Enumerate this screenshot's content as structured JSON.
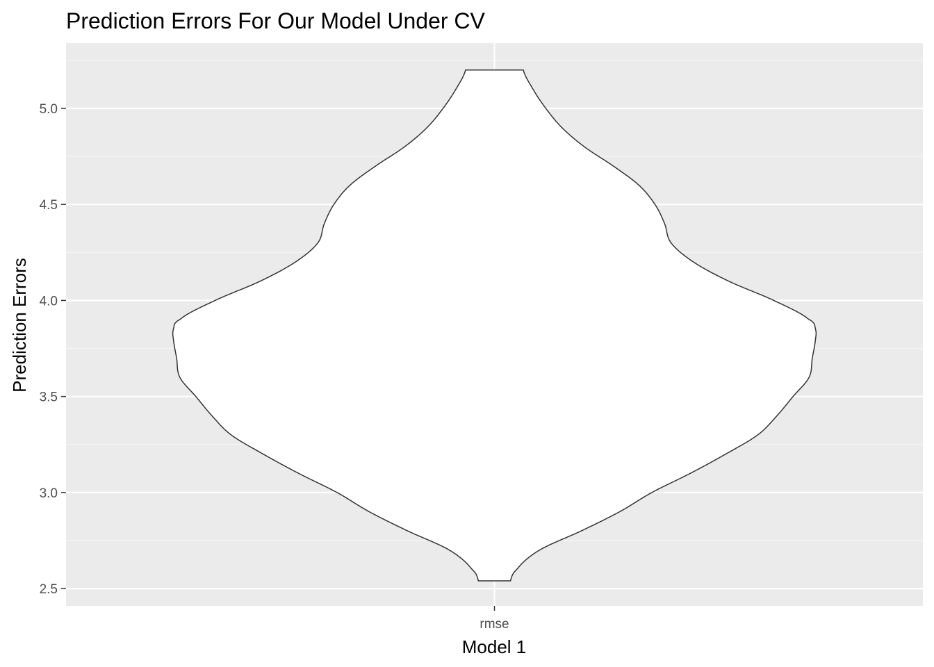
{
  "chart_data": {
    "type": "violin",
    "title": "Prediction Errors For Our Model Under CV",
    "xlabel": "Model 1",
    "ylabel": "Prediction Errors",
    "categories": [
      "rmse"
    ],
    "y_ticks": [
      2.5,
      3.0,
      3.5,
      4.0,
      4.5,
      5.0
    ],
    "y_tick_labels": [
      "2.5",
      "3.0",
      "3.5",
      "4.0",
      "4.5",
      "5.0"
    ],
    "ylim": [
      2.41,
      5.34
    ],
    "y_min": 2.54,
    "y_max": 5.2,
    "density_profile": {
      "y": [
        2.54,
        2.6,
        2.7,
        2.8,
        2.9,
        3.0,
        3.1,
        3.2,
        3.3,
        3.4,
        3.5,
        3.6,
        3.7,
        3.8,
        3.85,
        3.9,
        4.0,
        4.1,
        4.2,
        4.3,
        4.4,
        4.5,
        4.6,
        4.7,
        4.8,
        4.9,
        5.0,
        5.1,
        5.2
      ],
      "relative_width": [
        0.05,
        0.07,
        0.14,
        0.27,
        0.39,
        0.49,
        0.61,
        0.72,
        0.82,
        0.88,
        0.93,
        0.98,
        0.99,
        1.0,
        1.0,
        0.98,
        0.87,
        0.73,
        0.62,
        0.55,
        0.53,
        0.5,
        0.45,
        0.37,
        0.28,
        0.21,
        0.16,
        0.12,
        0.09
      ]
    },
    "grid": true,
    "legend": "none",
    "colors": {
      "panel_background": "#ebebeb",
      "grid_major": "#ffffff",
      "grid_minor": "#f5f5f5",
      "violin_fill": "#ffffff",
      "violin_stroke": "#333333",
      "tick_color": "#333333"
    }
  }
}
